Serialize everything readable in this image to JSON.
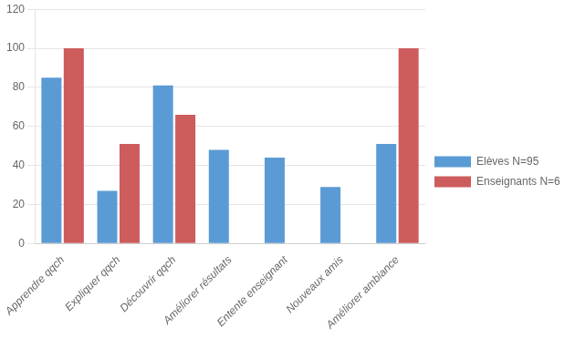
{
  "chart_data": {
    "type": "bar",
    "categories": [
      "Apprendre qqch",
      "Expliquer qqch",
      "Découvrir qqch",
      "Améliorer résultats",
      "Entente enseignant",
      "Nouveaux amis",
      "Améliorer ambiance"
    ],
    "series": [
      {
        "name": "Elèves N=95",
        "color": "#5B9BD5",
        "values": [
          85,
          27,
          81,
          48,
          44,
          29,
          51
        ]
      },
      {
        "name": "Enseignants N=6",
        "color": "#CD5C5C",
        "values": [
          100,
          51,
          66,
          0,
          0,
          0,
          100
        ]
      }
    ],
    "ylim": [
      0,
      120
    ],
    "yticks": [
      0,
      20,
      40,
      60,
      80,
      100,
      120
    ],
    "grid": true,
    "legend": "right"
  }
}
